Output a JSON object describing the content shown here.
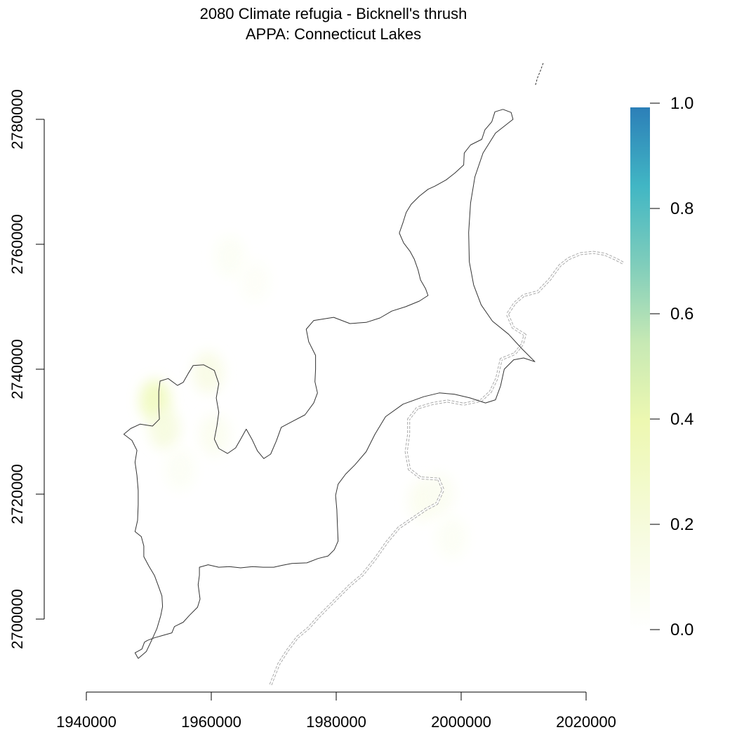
{
  "chart_data": {
    "type": "heatmap",
    "title": "2080 Climate refugia - Bicknell's thrush",
    "subtitle": "APPA: Connecticut Lakes",
    "x_ticks": [
      1940000,
      1960000,
      1980000,
      2000000,
      2020000
    ],
    "x_tick_labels": [
      "1940000",
      "1960000",
      "1980000",
      "2000000",
      "2020000"
    ],
    "y_ticks": [
      2700000,
      2720000,
      2740000,
      2760000,
      2780000
    ],
    "y_tick_labels": [
      "2700000",
      "2720000",
      "2740000",
      "2760000",
      "2780000"
    ],
    "xlim": [
      1940000,
      2020000
    ],
    "ylim": [
      2700000,
      2780000
    ],
    "legend": {
      "values": [
        0.0,
        0.2,
        0.4,
        0.6,
        0.8,
        1.0
      ],
      "labels": [
        "0.0",
        "0.2",
        "0.4",
        "0.6",
        "0.8",
        "1.0"
      ],
      "range": [
        0.0,
        1.0
      ],
      "colors": [
        "#ffffff",
        "#f7fbe0",
        "#edf8b1",
        "#c7e9b4",
        "#7fcdbb",
        "#41b6c4",
        "#2c7fb8"
      ],
      "placement": "right"
    },
    "refugia_patches": [
      {
        "x": 1951000,
        "y": 2735000,
        "value": 0.22
      },
      {
        "x": 1952500,
        "y": 2730500,
        "value": 0.12
      },
      {
        "x": 1959500,
        "y": 2739500,
        "value": 0.1
      },
      {
        "x": 1960500,
        "y": 2729500,
        "value": 0.06
      },
      {
        "x": 1955000,
        "y": 2724000,
        "value": 0.04
      },
      {
        "x": 1963000,
        "y": 2758000,
        "value": 0.04
      },
      {
        "x": 1967000,
        "y": 2754000,
        "value": 0.03
      },
      {
        "x": 1994000,
        "y": 2719000,
        "value": 0.06
      },
      {
        "x": 1996500,
        "y": 2720000,
        "value": 0.05
      },
      {
        "x": 1998500,
        "y": 2713000,
        "value": 0.04
      }
    ],
    "boundary_outline": [
      [
        1948300,
        2693700
      ],
      [
        1947800,
        2694600
      ],
      [
        1948900,
        2695200
      ],
      [
        1949300,
        2696300
      ],
      [
        1949800,
        2696600
      ],
      [
        1950900,
        2697000
      ],
      [
        1952300,
        2697400
      ],
      [
        1953700,
        2697800
      ],
      [
        1954100,
        2698800
      ],
      [
        1955500,
        2699500
      ],
      [
        1956500,
        2700600
      ],
      [
        1957800,
        2701900
      ],
      [
        1958200,
        2703200
      ],
      [
        1957900,
        2705500
      ],
      [
        1958100,
        2707000
      ],
      [
        1958100,
        2708300
      ],
      [
        1959500,
        2708700
      ],
      [
        1961200,
        2708300
      ],
      [
        1962900,
        2708400
      ],
      [
        1964700,
        2708200
      ],
      [
        1966600,
        2708400
      ],
      [
        1968300,
        2708300
      ],
      [
        1970000,
        2708300
      ],
      [
        1971300,
        2708600
      ],
      [
        1972900,
        2708900
      ],
      [
        1975300,
        2709000
      ],
      [
        1977100,
        2709700
      ],
      [
        1978700,
        2710100
      ],
      [
        1979700,
        2711100
      ],
      [
        1980300,
        2712500
      ],
      [
        1980200,
        2714800
      ],
      [
        1980100,
        2717500
      ],
      [
        1979900,
        2719800
      ],
      [
        1980300,
        2721600
      ],
      [
        1981500,
        2723200
      ],
      [
        1983000,
        2724700
      ],
      [
        1984800,
        2726800
      ],
      [
        1986200,
        2729600
      ],
      [
        1987900,
        2732400
      ],
      [
        1990700,
        2734400
      ],
      [
        1994000,
        2735600
      ],
      [
        1996500,
        2736200
      ],
      [
        1998900,
        2736000
      ],
      [
        2001400,
        2735400
      ],
      [
        2003900,
        2734600
      ],
      [
        2005500,
        2735100
      ],
      [
        2006300,
        2737300
      ],
      [
        2006900,
        2740000
      ],
      [
        2008400,
        2741500
      ],
      [
        2010000,
        2741800
      ],
      [
        2011800,
        2741200
      ],
      [
        2009700,
        2743300
      ],
      [
        2007600,
        2745600
      ],
      [
        2005000,
        2747700
      ],
      [
        2003200,
        2750300
      ],
      [
        2002000,
        2753500
      ],
      [
        2001300,
        2757200
      ],
      [
        2001200,
        2761900
      ],
      [
        2001500,
        2766600
      ],
      [
        2002200,
        2770800
      ],
      [
        2003500,
        2774600
      ],
      [
        2005500,
        2777800
      ],
      [
        2008300,
        2780000
      ],
      [
        2008000,
        2781100
      ],
      [
        2006700,
        2781600
      ],
      [
        2005400,
        2781200
      ],
      [
        2004900,
        2779600
      ],
      [
        2003800,
        2778300
      ],
      [
        2003300,
        2776800
      ],
      [
        2001500,
        2775900
      ],
      [
        2000500,
        2774600
      ],
      [
        2000400,
        2772700
      ],
      [
        1999000,
        2771400
      ],
      [
        1997600,
        2770300
      ],
      [
        1995800,
        2769300
      ],
      [
        1994700,
        2768800
      ],
      [
        1993300,
        2767700
      ],
      [
        1992000,
        2766400
      ],
      [
        1991200,
        2765100
      ],
      [
        1990700,
        2763500
      ],
      [
        1990100,
        2761800
      ],
      [
        1990800,
        2760200
      ],
      [
        1991800,
        2758900
      ],
      [
        1992500,
        2757600
      ],
      [
        1993100,
        2755900
      ],
      [
        1993500,
        2754300
      ],
      [
        1994300,
        2752900
      ],
      [
        1994700,
        2751800
      ],
      [
        1993300,
        2750900
      ],
      [
        1991100,
        2750000
      ],
      [
        1988900,
        2749300
      ],
      [
        1987000,
        2748200
      ],
      [
        1984800,
        2747500
      ],
      [
        1982200,
        2747300
      ],
      [
        1979600,
        2748300
      ],
      [
        1976400,
        2747800
      ],
      [
        1975200,
        2746400
      ],
      [
        1975600,
        2744400
      ],
      [
        1976700,
        2742200
      ],
      [
        1976700,
        2740000
      ],
      [
        1976600,
        2738000
      ],
      [
        1977000,
        2736200
      ],
      [
        1976400,
        2734600
      ],
      [
        1975000,
        2732700
      ],
      [
        1972900,
        2731600
      ],
      [
        1971200,
        2730700
      ],
      [
        1970400,
        2728500
      ],
      [
        1969500,
        2726400
      ],
      [
        1968400,
        2725700
      ],
      [
        1967400,
        2726900
      ],
      [
        1966500,
        2728800
      ],
      [
        1965600,
        2730400
      ],
      [
        1964700,
        2728800
      ],
      [
        1963900,
        2727400
      ],
      [
        1962600,
        2726500
      ],
      [
        1961200,
        2727300
      ],
      [
        1960500,
        2728800
      ],
      [
        1960900,
        2730900
      ],
      [
        1961200,
        2733100
      ],
      [
        1960800,
        2735400
      ],
      [
        1961200,
        2737700
      ],
      [
        1960500,
        2739800
      ],
      [
        1958800,
        2740700
      ],
      [
        1957100,
        2740600
      ],
      [
        1956300,
        2739300
      ],
      [
        1955500,
        2737900
      ],
      [
        1954600,
        2737400
      ],
      [
        1953100,
        2738500
      ],
      [
        1951800,
        2738100
      ],
      [
        1951600,
        2736400
      ],
      [
        1951600,
        2734000
      ],
      [
        1951700,
        2732000
      ],
      [
        1950600,
        2730900
      ],
      [
        1948600,
        2731200
      ],
      [
        1947100,
        2730500
      ],
      [
        1946000,
        2729600
      ],
      [
        1947300,
        2728600
      ],
      [
        1948100,
        2727000
      ],
      [
        1947800,
        2725100
      ],
      [
        1948100,
        2723000
      ],
      [
        1948300,
        2720600
      ],
      [
        1948300,
        2718300
      ],
      [
        1948200,
        2715800
      ],
      [
        1947800,
        2714000
      ],
      [
        1948800,
        2713200
      ],
      [
        1949200,
        2711700
      ],
      [
        1949200,
        2710000
      ],
      [
        1950000,
        2708500
      ],
      [
        1950900,
        2707000
      ],
      [
        1951500,
        2705400
      ],
      [
        1952100,
        2703700
      ],
      [
        1952200,
        2702000
      ],
      [
        1951900,
        2700500
      ],
      [
        1951300,
        2698500
      ],
      [
        1950500,
        2696700
      ],
      [
        1949600,
        2694800
      ],
      [
        1948300,
        2693700
      ]
    ],
    "trail_line": [
      [
        1969500,
        2689500
      ],
      [
        1970800,
        2692800
      ],
      [
        1972200,
        2695000
      ],
      [
        1973800,
        2697100
      ],
      [
        1975600,
        2698600
      ],
      [
        1977300,
        2700500
      ],
      [
        1979100,
        2702300
      ],
      [
        1980600,
        2703800
      ],
      [
        1982200,
        2705400
      ],
      [
        1984200,
        2707100
      ],
      [
        1986200,
        2709600
      ],
      [
        1988100,
        2712300
      ],
      [
        1990000,
        2714600
      ],
      [
        1992200,
        2716100
      ],
      [
        1994400,
        2717600
      ],
      [
        1996100,
        2718500
      ],
      [
        1997100,
        2720700
      ],
      [
        1996400,
        2722400
      ],
      [
        1993500,
        2722600
      ],
      [
        1991700,
        2724000
      ],
      [
        1991200,
        2726800
      ],
      [
        1991600,
        2729600
      ],
      [
        1991600,
        2732000
      ],
      [
        1993000,
        2733800
      ],
      [
        1995400,
        2734500
      ],
      [
        1997800,
        2734900
      ],
      [
        2000400,
        2734400
      ],
      [
        2003200,
        2735000
      ],
      [
        2004700,
        2736400
      ],
      [
        2005700,
        2738500
      ],
      [
        2006400,
        2741600
      ],
      [
        2008600,
        2742500
      ],
      [
        2009800,
        2744000
      ],
      [
        2010200,
        2745500
      ],
      [
        2008300,
        2746700
      ],
      [
        2007400,
        2748800
      ],
      [
        2008600,
        2750600
      ],
      [
        2010000,
        2751800
      ],
      [
        2012300,
        2752400
      ],
      [
        2014200,
        2754400
      ],
      [
        2015800,
        2756600
      ],
      [
        2017200,
        2757700
      ],
      [
        2019100,
        2758500
      ],
      [
        2021200,
        2758700
      ],
      [
        2023000,
        2758400
      ],
      [
        2024800,
        2757600
      ],
      [
        2026100,
        2756900
      ]
    ],
    "north_fragment": [
      [
        2011900,
        2785500
      ],
      [
        2012200,
        2786600
      ],
      [
        2012700,
        2787800
      ],
      [
        2013200,
        2789200
      ]
    ]
  }
}
